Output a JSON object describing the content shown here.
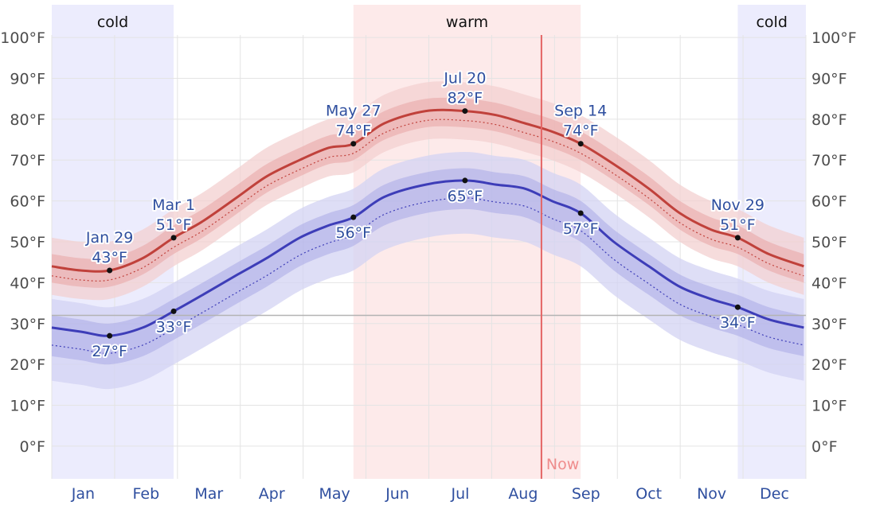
{
  "chart_data": {
    "type": "line",
    "y_tick_labels": [
      "100°F",
      "90°F",
      "80°F",
      "70°F",
      "60°F",
      "50°F",
      "40°F",
      "30°F",
      "20°F",
      "10°F",
      "0°F"
    ],
    "y_ticks": [
      100,
      90,
      80,
      70,
      60,
      50,
      40,
      30,
      20,
      10,
      0
    ],
    "ylim": [
      -8,
      108
    ],
    "xlim": [
      1,
      366
    ],
    "months": [
      "Jan",
      "Feb",
      "Mar",
      "Apr",
      "May",
      "Jun",
      "Jul",
      "Aug",
      "Sep",
      "Oct",
      "Nov",
      "Dec"
    ],
    "grid": true,
    "freezing_line": 32,
    "seasons": [
      {
        "label": "cold",
        "start_day": 1,
        "end_day": 60,
        "kind": "cold"
      },
      {
        "label": "warm",
        "start_day": 147,
        "end_day": 257,
        "kind": "warm"
      },
      {
        "label": "cold",
        "start_day": 333,
        "end_day": 366,
        "kind": "cold"
      }
    ],
    "now": {
      "label": "Now",
      "day": 238
    },
    "x_days": [
      1,
      15,
      29,
      45,
      60,
      74,
      91,
      105,
      121,
      135,
      147,
      162,
      182,
      201,
      216,
      230,
      243,
      257,
      273,
      290,
      305,
      320,
      333,
      348,
      365
    ],
    "high": [
      44,
      43,
      43,
      46,
      51,
      55,
      61,
      66,
      70,
      73,
      74,
      79,
      82,
      82,
      81,
      79,
      77,
      74,
      69,
      63,
      57,
      53,
      51,
      47,
      44
    ],
    "low": [
      29,
      28,
      27,
      29,
      33,
      37,
      42,
      46,
      51,
      54,
      56,
      61,
      64,
      65,
      64,
      63,
      60,
      57,
      50,
      44,
      39,
      36,
      34,
      31,
      29
    ],
    "annotations": [
      {
        "date": "Jan 29",
        "value_label": "43°F",
        "day": 29,
        "value": 43,
        "series": "high",
        "pos": "above"
      },
      {
        "date": "Mar 1",
        "value_label": "51°F",
        "day": 60,
        "value": 51,
        "series": "high",
        "pos": "above"
      },
      {
        "date": "May 27",
        "value_label": "74°F",
        "day": 147,
        "value": 74,
        "series": "high",
        "pos": "above"
      },
      {
        "date": "Jul 20",
        "value_label": "82°F",
        "day": 201,
        "value": 82,
        "series": "high",
        "pos": "above"
      },
      {
        "date": "Sep 14",
        "value_label": "74°F",
        "day": 257,
        "value": 74,
        "series": "high",
        "pos": "above"
      },
      {
        "date": "Nov 29",
        "value_label": "51°F",
        "day": 333,
        "value": 51,
        "series": "high",
        "pos": "above"
      },
      {
        "date": "",
        "value_label": "27°F",
        "day": 29,
        "value": 27,
        "series": "low",
        "pos": "below"
      },
      {
        "date": "",
        "value_label": "33°F",
        "day": 60,
        "value": 33,
        "series": "low",
        "pos": "below"
      },
      {
        "date": "",
        "value_label": "56°F",
        "day": 147,
        "value": 56,
        "series": "low",
        "pos": "below"
      },
      {
        "date": "",
        "value_label": "65°F",
        "day": 201,
        "value": 65,
        "series": "low",
        "pos": "below"
      },
      {
        "date": "",
        "value_label": "57°F",
        "day": 257,
        "value": 57,
        "series": "low",
        "pos": "below"
      },
      {
        "date": "",
        "value_label": "34°F",
        "day": 333,
        "value": 34,
        "series": "low",
        "pos": "below"
      }
    ],
    "colors": {
      "high_line": "#c0413b",
      "low_line": "#3d3db8",
      "high_band_inner": "#e9a9a9",
      "high_band_outer": "#f3d0d0",
      "low_band_inner": "#a9a9e6",
      "low_band_outer": "#d3d3f3",
      "cold_shade": "#ececfd",
      "warm_shade": "#fdeaea",
      "now_line": "#e46464",
      "grid": "#e4e4e4",
      "freezing": "#b3b3b3"
    }
  }
}
